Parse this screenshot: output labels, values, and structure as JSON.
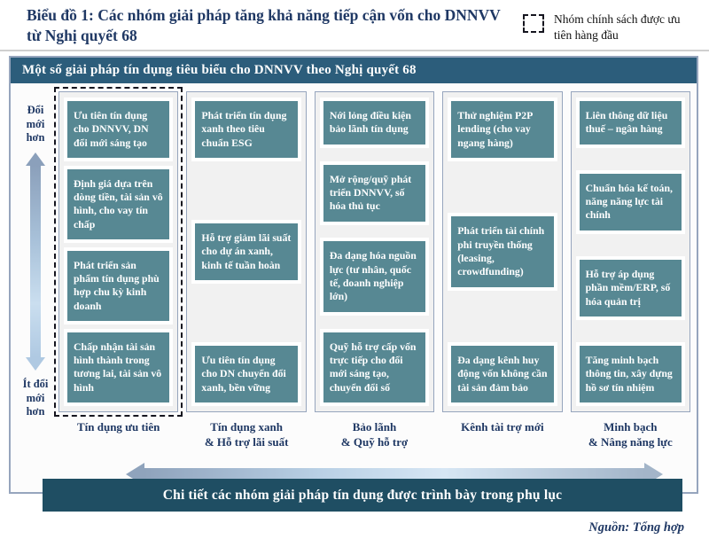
{
  "title": "Biểu đồ 1: Các nhóm giải pháp tăng khả năng tiếp cận vốn cho DNNVV từ Nghị quyết 68",
  "legend": {
    "label": "Nhóm chính sách được ưu tiên hàng đầu"
  },
  "panel": {
    "header": "Một số giải pháp tín dụng tiêu biểu cho DNNVV theo Nghị quyết 68"
  },
  "axis": {
    "top_label": "Đổi\nmới\nhơn",
    "bottom_label": "Ít đổi\nmới\nhơn"
  },
  "columns": [
    {
      "priority": true,
      "footer": "Tín dụng ưu tiên",
      "boxes": [
        "Ưu tiên tín dụng cho DNNVV, DN đổi mới sáng tạo",
        "Định giá dựa trên dòng tiền, tài sản vô hình, cho vay tín chấp",
        "Phát triển sản phẩm tín dụng phù hợp chu kỳ kinh doanh",
        "Chấp nhận tài sản hình thành trong tương lai, tài sản vô hình"
      ]
    },
    {
      "priority": false,
      "footer": "Tín dụng xanh\n& Hỗ trợ lãi suất",
      "boxes": [
        "Phát triển tín dụng xanh theo tiêu chuẩn ESG",
        "Hỗ trợ giảm lãi suất cho dự án xanh, kinh tế tuần hoàn",
        "Ưu tiên tín dụng cho DN chuyển đổi xanh, bền vững"
      ]
    },
    {
      "priority": false,
      "footer": "Bảo lãnh\n& Quỹ hỗ trợ",
      "boxes": [
        "Nới lỏng điều kiện bảo lãnh tín dụng",
        "Mở rộng/quỹ phát triển DNNVV, số hóa thủ tục",
        "Đa dạng hóa nguồn lực (tư nhân, quốc tế, doanh nghiệp lớn)",
        "Quỹ hỗ trợ cấp vốn trực tiếp cho đổi mới sáng tạo, chuyển đổi số"
      ]
    },
    {
      "priority": false,
      "footer": "Kênh tài trợ mới",
      "boxes": [
        "Thử nghiệm P2P lending (cho vay ngang hàng)",
        "Phát triển tài chính phi truyền thống (leasing, crowdfunding)",
        "Đa dạng kênh huy động vốn không cần tài sản đảm bảo"
      ]
    },
    {
      "priority": false,
      "footer": "Minh bạch\n& Nâng năng lực",
      "boxes": [
        "Liên thông dữ liệu thuế – ngân hàng",
        "Chuẩn hóa kế toán, năng năng lực tài chính",
        "Hỗ trợ áp dụng phần mềm/ERP, số hóa quản trị",
        "Tăng minh bạch thông tin, xây dựng hồ sơ tín nhiệm"
      ]
    }
  ],
  "bottom_bar": "Chi tiết các nhóm giải pháp tín dụng được trình bày trong phụ lục",
  "source": "Nguồn: Tổng hợp",
  "colors": {
    "title_navy": "#1F3864",
    "header_bar": "#2C5D7B",
    "bottom_bar": "#1F4E63",
    "box_teal": "#578893",
    "border_blue_gray": "#96A5BD"
  }
}
